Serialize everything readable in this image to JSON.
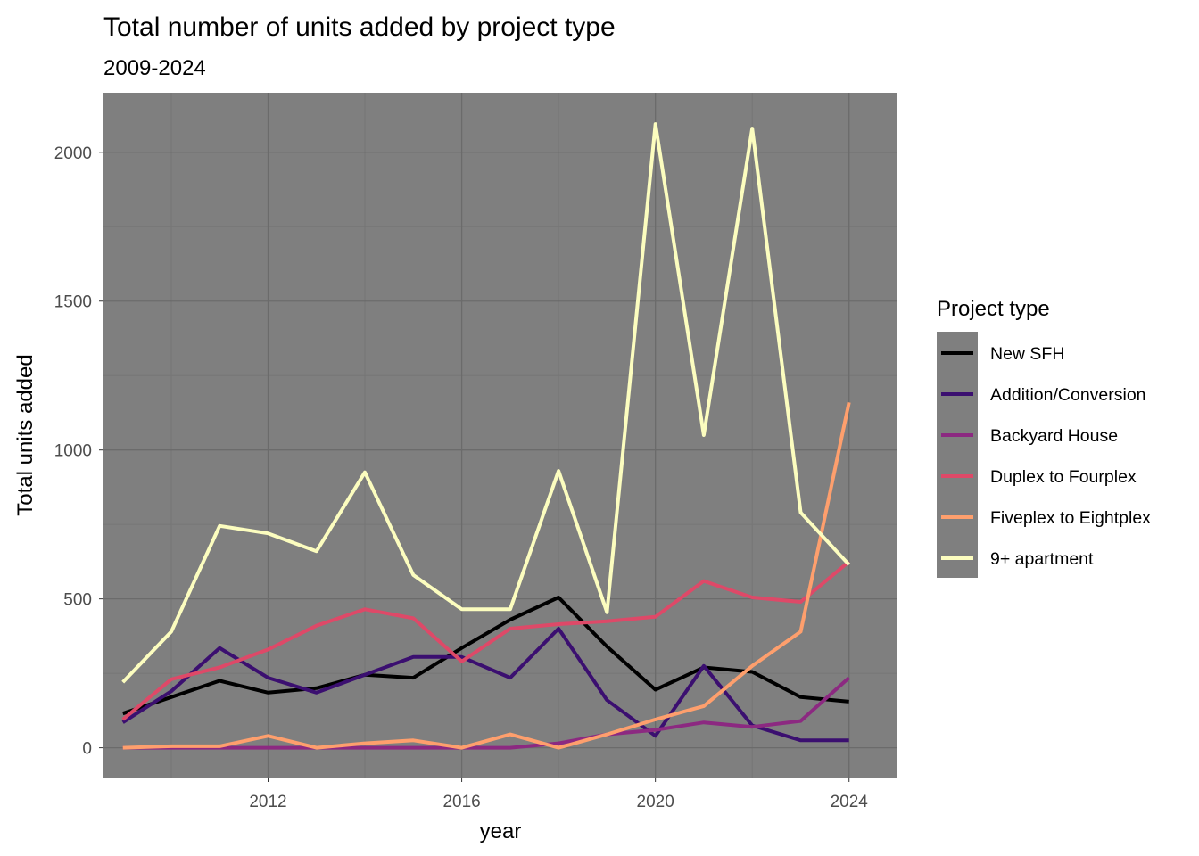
{
  "chart_data": {
    "type": "line",
    "title": "Total number of units added by project type",
    "subtitle": "2009-2024",
    "xlabel": "year",
    "ylabel": "Total units added",
    "xlim": [
      2008.6,
      2025
    ],
    "ylim": [
      -100,
      2200
    ],
    "x_ticks": [
      2012,
      2016,
      2020,
      2024
    ],
    "x_minor_ticks": [
      2010,
      2014,
      2018,
      2022
    ],
    "y_ticks": [
      0,
      500,
      1000,
      1500,
      2000
    ],
    "y_minor_ticks": [
      250,
      750,
      1250,
      1750
    ],
    "panel_background": "#7f7f7f",
    "grid": true,
    "legend_title": "Project type",
    "legend_position": "right",
    "x": [
      2009,
      2010,
      2011,
      2012,
      2013,
      2014,
      2015,
      2016,
      2017,
      2018,
      2019,
      2020,
      2021,
      2022,
      2023,
      2024
    ],
    "series": [
      {
        "name": "New SFH",
        "color": "#000000",
        "values": [
          115,
          170,
          225,
          185,
          200,
          245,
          235,
          335,
          430,
          505,
          340,
          195,
          270,
          255,
          170,
          155
        ]
      },
      {
        "name": "Addition/Conversion",
        "color": "#3b0f70",
        "values": [
          85,
          190,
          335,
          235,
          185,
          245,
          305,
          305,
          235,
          400,
          160,
          40,
          275,
          75,
          25,
          25
        ]
      },
      {
        "name": "Backyard House",
        "color": "#8c2981",
        "values": [
          0,
          0,
          0,
          0,
          0,
          0,
          0,
          0,
          0,
          15,
          45,
          60,
          85,
          70,
          90,
          235
        ]
      },
      {
        "name": "Duplex to Fourplex",
        "color": "#de4968",
        "values": [
          95,
          230,
          270,
          330,
          410,
          465,
          435,
          290,
          400,
          415,
          425,
          440,
          560,
          505,
          490,
          625
        ]
      },
      {
        "name": "Fiveplex to Eightplex",
        "color": "#fe9f6d",
        "values": [
          0,
          5,
          5,
          40,
          0,
          15,
          25,
          0,
          45,
          0,
          45,
          95,
          140,
          275,
          390,
          1160
        ]
      },
      {
        "name": "9+ apartment",
        "color": "#fcfdbf",
        "values": [
          220,
          390,
          745,
          720,
          660,
          925,
          580,
          465,
          465,
          930,
          455,
          2095,
          1050,
          2080,
          790,
          615
        ]
      }
    ]
  }
}
